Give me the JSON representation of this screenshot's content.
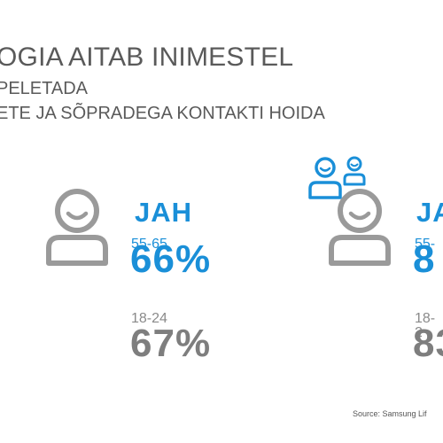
{
  "heading": {
    "line1": "OGIA AITAB INIMESTEL",
    "line2": "PELETADA",
    "line3": "ETE JA SÕPRADEGA KONTAKTI HOIDA"
  },
  "panels": [
    {
      "answer": "JAH",
      "groups": [
        {
          "age": "55-65",
          "percent": "66%"
        },
        {
          "age": "18-24",
          "percent": "67%"
        }
      ]
    },
    {
      "answer": "JA",
      "groups": [
        {
          "age": "55-",
          "percent": "8"
        },
        {
          "age": "18-2",
          "percent": "83"
        }
      ]
    }
  ],
  "source": "Source: Samsung Lif",
  "colors": {
    "accent": "#1a8fd8",
    "icon": "#9a9a9a",
    "text": "#555555"
  },
  "icons": [
    "person-icon",
    "person-icon",
    "group-icon"
  ]
}
